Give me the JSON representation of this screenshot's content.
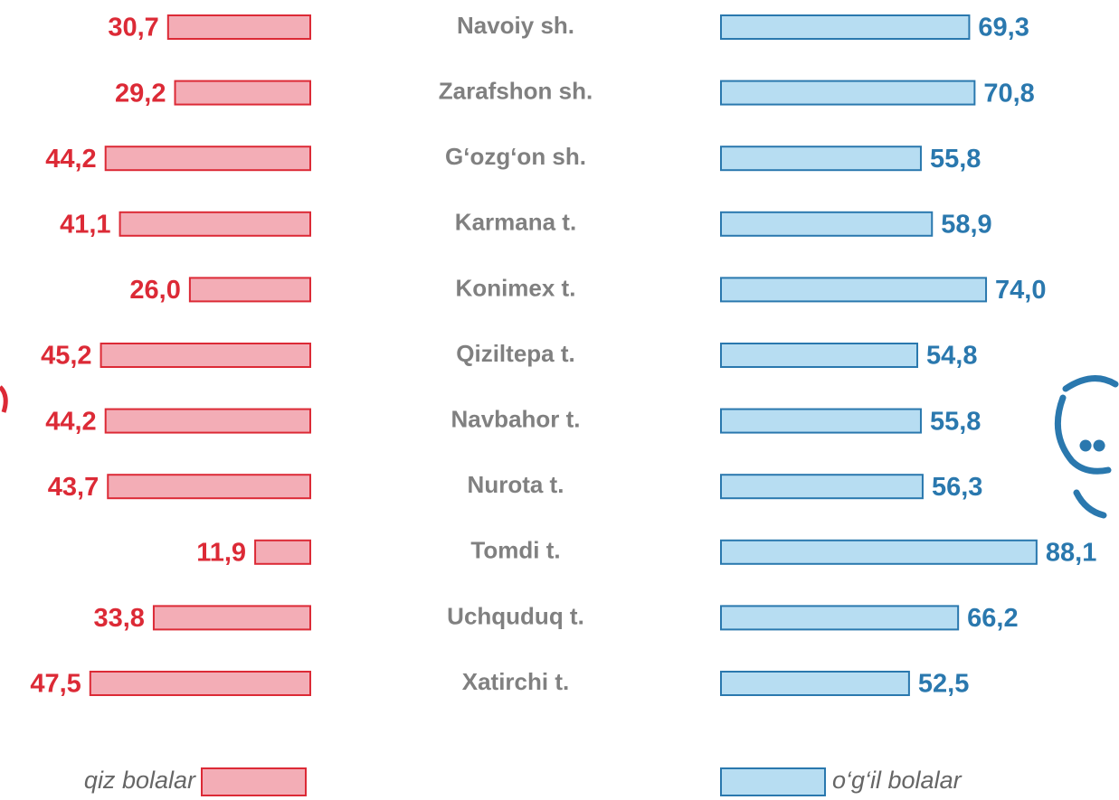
{
  "chart_data": {
    "type": "butterfly-bar",
    "categories": [
      "Navoiy sh.",
      "Zarafshon sh.",
      "G‘ozg‘on sh.",
      "Karmana t.",
      "Konimex t.",
      "Qiziltepa t.",
      "Navbahor t.",
      "Nurota t.",
      "Tomdi t.",
      "Uchquduq t.",
      "Xatirchi t."
    ],
    "series": [
      {
        "name": "qiz bolalar",
        "color": "#f3adb6",
        "edge_color": "#dc2a36",
        "side": "left",
        "values": [
          30.7,
          29.2,
          44.2,
          41.1,
          26.0,
          45.2,
          44.2,
          43.7,
          11.9,
          33.8,
          47.5
        ],
        "value_labels": [
          "30,7",
          "29,2",
          "44,2",
          "41,1",
          "26,0",
          "45,2",
          "44,2",
          "43,7",
          "11,9",
          "33,8",
          "47,5"
        ]
      },
      {
        "name": "o‘g‘il bolalar",
        "color": "#b7ddf2",
        "edge_color": "#2a78ae",
        "side": "right",
        "values": [
          69.3,
          70.8,
          55.8,
          58.9,
          74.0,
          54.8,
          55.8,
          56.3,
          88.1,
          66.2,
          52.5
        ],
        "value_labels": [
          "69,3",
          "70,8",
          "55,8",
          "58,9",
          "74,0",
          "54,8",
          "55,8",
          "56,3",
          "88,1",
          "66,2",
          "52,5"
        ]
      }
    ]
  }
}
